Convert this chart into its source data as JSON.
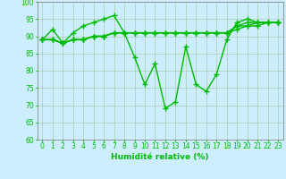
{
  "xlabel": "Humidité relative (%)",
  "background_color": "#cceeff",
  "grid_color": "#aaccaa",
  "line_color": "#00bb00",
  "marker": "+",
  "markersize": 4,
  "linewidth": 1.0,
  "ylim": [
    60,
    100
  ],
  "yticks": [
    60,
    65,
    70,
    75,
    80,
    85,
    90,
    95,
    100
  ],
  "xlim": [
    -0.5,
    23.5
  ],
  "xtick_labels": [
    "0",
    "1",
    "2",
    "3",
    "4",
    "5",
    "6",
    "7",
    "8",
    "9",
    "10",
    "11",
    "12",
    "13",
    "14",
    "15",
    "16",
    "17",
    "18",
    "19",
    "20",
    "21",
    "22",
    "23"
  ],
  "series": [
    [
      89,
      92,
      88,
      91,
      93,
      94,
      95,
      96,
      91,
      84,
      76,
      82,
      69,
      71,
      87,
      76,
      74,
      79,
      89,
      94,
      95,
      94,
      94,
      94
    ],
    [
      89,
      89,
      88,
      89,
      89,
      90,
      90,
      91,
      91,
      91,
      91,
      91,
      91,
      91,
      91,
      91,
      91,
      91,
      91,
      93,
      94,
      94,
      94,
      94
    ],
    [
      89,
      89,
      88,
      89,
      89,
      90,
      90,
      91,
      91,
      91,
      91,
      91,
      91,
      91,
      91,
      91,
      91,
      91,
      91,
      93,
      93,
      94,
      94,
      94
    ],
    [
      89,
      89,
      88,
      89,
      89,
      90,
      90,
      91,
      91,
      91,
      91,
      91,
      91,
      91,
      91,
      91,
      91,
      91,
      91,
      92,
      93,
      93,
      94,
      94
    ]
  ],
  "tick_fontsize": 5.5,
  "xlabel_fontsize": 6.5
}
